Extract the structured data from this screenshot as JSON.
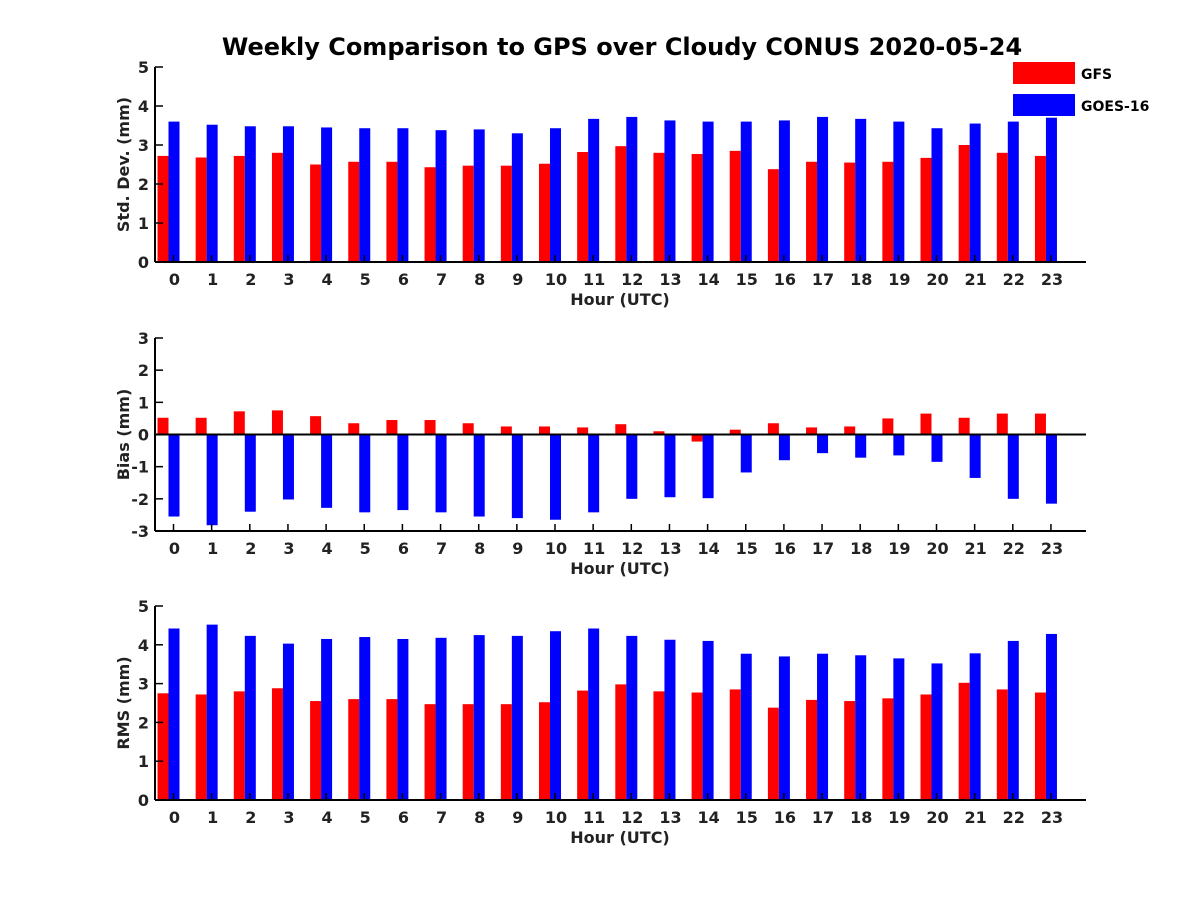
{
  "title": "Weekly Comparison to GPS over Cloudy CONUS 2020-05-24",
  "legend": {
    "placement": "top-right",
    "items": [
      {
        "label": "GFS",
        "color": "#ff0000"
      },
      {
        "label": "GOES-16",
        "color": "#0000ff"
      }
    ]
  },
  "chart_data": [
    {
      "type": "bar",
      "categories": [
        "0",
        "1",
        "2",
        "3",
        "4",
        "5",
        "6",
        "7",
        "8",
        "9",
        "10",
        "11",
        "12",
        "13",
        "14",
        "15",
        "16",
        "17",
        "18",
        "19",
        "20",
        "21",
        "22",
        "23"
      ],
      "xlabel": "Hour (UTC)",
      "ylabel": "Std. Dev. (mm)",
      "ylim": [
        0,
        5
      ],
      "yticks": [
        0,
        1,
        2,
        3,
        4,
        5
      ],
      "series": [
        {
          "name": "GFS",
          "color": "#ff0000",
          "values": [
            2.72,
            2.68,
            2.72,
            2.8,
            2.5,
            2.57,
            2.57,
            2.43,
            2.47,
            2.47,
            2.52,
            2.82,
            2.97,
            2.8,
            2.77,
            2.85,
            2.38,
            2.57,
            2.55,
            2.57,
            2.67,
            3.0,
            2.8,
            2.72
          ]
        },
        {
          "name": "GOES-16",
          "color": "#0000ff",
          "values": [
            3.6,
            3.52,
            3.48,
            3.48,
            3.45,
            3.43,
            3.43,
            3.38,
            3.4,
            3.3,
            3.43,
            3.67,
            3.72,
            3.63,
            3.6,
            3.6,
            3.63,
            3.72,
            3.67,
            3.6,
            3.43,
            3.55,
            3.6,
            3.7
          ]
        }
      ]
    },
    {
      "type": "bar",
      "categories": [
        "0",
        "1",
        "2",
        "3",
        "4",
        "5",
        "6",
        "7",
        "8",
        "9",
        "10",
        "11",
        "12",
        "13",
        "14",
        "15",
        "16",
        "17",
        "18",
        "19",
        "20",
        "21",
        "22",
        "23"
      ],
      "xlabel": "Hour (UTC)",
      "ylabel": "Bias (mm)",
      "ylim": [
        -3,
        3
      ],
      "yticks": [
        -3,
        -2,
        -1,
        0,
        1,
        2,
        3
      ],
      "series": [
        {
          "name": "GFS",
          "color": "#ff0000",
          "values": [
            0.52,
            0.52,
            0.72,
            0.75,
            0.57,
            0.35,
            0.45,
            0.45,
            0.35,
            0.25,
            0.25,
            0.22,
            0.32,
            0.1,
            -0.22,
            0.15,
            0.35,
            0.22,
            0.25,
            0.5,
            0.65,
            0.52,
            0.65,
            0.65
          ]
        },
        {
          "name": "GOES-16",
          "color": "#0000ff",
          "values": [
            -2.55,
            -2.82,
            -2.4,
            -2.02,
            -2.28,
            -2.42,
            -2.35,
            -2.42,
            -2.55,
            -2.6,
            -2.65,
            -2.42,
            -2.0,
            -1.95,
            -1.98,
            -1.18,
            -0.8,
            -0.58,
            -0.72,
            -0.65,
            -0.85,
            -1.35,
            -2.0,
            -2.15
          ]
        }
      ]
    },
    {
      "type": "bar",
      "categories": [
        "0",
        "1",
        "2",
        "3",
        "4",
        "5",
        "6",
        "7",
        "8",
        "9",
        "10",
        "11",
        "12",
        "13",
        "14",
        "15",
        "16",
        "17",
        "18",
        "19",
        "20",
        "21",
        "22",
        "23"
      ],
      "xlabel": "Hour (UTC)",
      "ylabel": "RMS (mm)",
      "ylim": [
        0,
        5
      ],
      "yticks": [
        0,
        1,
        2,
        3,
        4,
        5
      ],
      "series": [
        {
          "name": "GFS",
          "color": "#ff0000",
          "values": [
            2.75,
            2.72,
            2.8,
            2.88,
            2.55,
            2.6,
            2.6,
            2.47,
            2.47,
            2.47,
            2.52,
            2.82,
            2.98,
            2.8,
            2.77,
            2.85,
            2.38,
            2.58,
            2.55,
            2.62,
            2.72,
            3.02,
            2.85,
            2.77
          ]
        },
        {
          "name": "GOES-16",
          "color": "#0000ff",
          "values": [
            4.42,
            4.52,
            4.23,
            4.03,
            4.15,
            4.2,
            4.15,
            4.18,
            4.25,
            4.23,
            4.35,
            4.42,
            4.23,
            4.13,
            4.1,
            3.77,
            3.7,
            3.77,
            3.73,
            3.65,
            3.52,
            3.78,
            4.1,
            4.28
          ]
        }
      ]
    }
  ]
}
